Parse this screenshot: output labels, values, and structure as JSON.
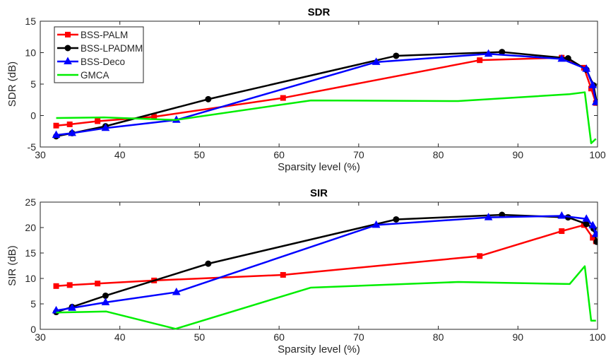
{
  "figure": {
    "background": "#ffffff"
  },
  "chart_data": [
    {
      "type": "line",
      "title": "SDR",
      "xlabel": "Sparsity level (%)",
      "ylabel": "SDR (dB)",
      "xlim": [
        30,
        100
      ],
      "ylim": [
        -5,
        15
      ],
      "xticks": [
        30,
        40,
        50,
        60,
        70,
        80,
        90,
        100
      ],
      "yticks": [
        -5,
        0,
        5,
        10,
        15
      ],
      "grid": false,
      "legend": "top-left",
      "series": [
        {
          "name": "BSS-PALM",
          "color": "#ff0000",
          "marker": "square",
          "x": [
            32,
            33.7,
            37.2,
            44.3,
            60.5,
            85.2,
            95.5,
            98.3,
            99.2,
            99.8
          ],
          "y": [
            -1.6,
            -1.4,
            -0.9,
            -0.2,
            2.8,
            8.8,
            9.2,
            7.6,
            4.3,
            2.0
          ]
        },
        {
          "name": "BSS-LPADMM",
          "color": "#000000",
          "marker": "circle",
          "x": [
            32,
            34,
            38.2,
            51.1,
            74.7,
            88,
            96.3,
            98.6,
            99.5,
            99.9
          ],
          "y": [
            -3.3,
            -2.8,
            -1.7,
            2.6,
            9.5,
            10.1,
            9.1,
            7.3,
            4.8,
            2.1
          ]
        },
        {
          "name": "BSS-Deco",
          "color": "#0000ff",
          "marker": "triangle",
          "x": [
            32,
            34,
            38.2,
            47.1,
            72.2,
            86.3,
            95.5,
            98.6,
            99.4,
            99.8
          ],
          "y": [
            -3.1,
            -2.8,
            -2.0,
            -0.7,
            8.5,
            9.8,
            9.0,
            7.4,
            4.8,
            2.1
          ]
        },
        {
          "name": "GMCA",
          "color": "#00ee00",
          "marker": "none",
          "x": [
            32,
            38,
            47,
            64,
            82.5,
            96.5,
            98.4,
            99.2,
            99.8
          ],
          "y": [
            -0.4,
            -0.3,
            -0.7,
            2.4,
            2.3,
            3.4,
            3.7,
            -4.4,
            -3.7
          ]
        }
      ]
    },
    {
      "type": "line",
      "title": "SIR",
      "xlabel": "Sparsity level (%)",
      "ylabel": "SIR (dB)",
      "xlim": [
        30,
        100
      ],
      "ylim": [
        0,
        25
      ],
      "xticks": [
        30,
        40,
        50,
        60,
        70,
        80,
        90,
        100
      ],
      "yticks": [
        0,
        5,
        10,
        15,
        20,
        25
      ],
      "grid": false,
      "series": [
        {
          "name": "BSS-PALM",
          "color": "#ff0000",
          "marker": "square",
          "x": [
            32,
            33.7,
            37.2,
            44.3,
            60.5,
            85.2,
            95.5,
            98.3,
            99.4,
            99.8
          ],
          "y": [
            8.5,
            8.7,
            9.0,
            9.6,
            10.7,
            14.4,
            19.3,
            20.5,
            18.0,
            17.3
          ]
        },
        {
          "name": "BSS-LPADMM",
          "color": "#000000",
          "marker": "circle",
          "x": [
            32,
            34,
            38.2,
            51.1,
            74.7,
            88,
            96.3,
            98.6,
            99.5,
            99.9
          ],
          "y": [
            3.4,
            4.4,
            6.6,
            12.9,
            21.6,
            22.5,
            22.0,
            20.7,
            19.8,
            17.2
          ]
        },
        {
          "name": "BSS-Deco",
          "color": "#0000ff",
          "marker": "triangle",
          "x": [
            32,
            34,
            38.2,
            47.1,
            72.2,
            86.3,
            95.5,
            98.6,
            99.4,
            99.8
          ],
          "y": [
            3.7,
            4.2,
            5.3,
            7.3,
            20.5,
            22.0,
            22.3,
            21.7,
            20.4,
            18.7
          ]
        },
        {
          "name": "GMCA",
          "color": "#00ee00",
          "marker": "none",
          "x": [
            32,
            38.3,
            47,
            64,
            82.5,
            96.5,
            98.4,
            99.2,
            99.8
          ],
          "y": [
            3.3,
            3.5,
            0.1,
            8.2,
            9.3,
            8.9,
            12.4,
            1.7,
            1.7
          ]
        }
      ]
    }
  ]
}
